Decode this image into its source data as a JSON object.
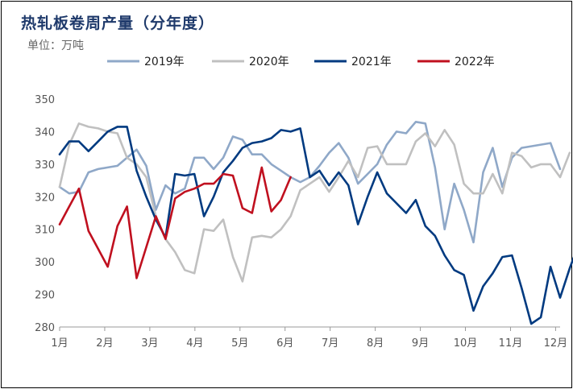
{
  "title": "热轧板卷周产量（分年度）",
  "unit_label": "单位：万吨",
  "chart_data": {
    "type": "line",
    "title": "热轧板卷周产量（分年度）",
    "ylabel": "单位：万吨",
    "xlabel": "",
    "ylim": [
      280,
      350
    ],
    "yticks": [
      280,
      290,
      300,
      310,
      320,
      330,
      340,
      350
    ],
    "x_ticks": [
      "1月",
      "2月",
      "3月",
      "4月",
      "5月",
      "6月",
      "7月",
      "8月",
      "9月",
      "10月",
      "11月",
      "12月"
    ],
    "x_range_weeks": [
      1,
      53
    ],
    "grid": false,
    "legend_position": "top",
    "series": [
      {
        "name": "2019年",
        "color": "#8fa8c8",
        "values": [
          323,
          321,
          321.5,
          327.5,
          328.5,
          329,
          329.5,
          332,
          334.5,
          329.5,
          316,
          323.5,
          321,
          322.5,
          332,
          332,
          328.5,
          332,
          338.5,
          337.5,
          333,
          333,
          330,
          328,
          326,
          324.5,
          326,
          329.5,
          333.5,
          336.5,
          332,
          324,
          327,
          330,
          336,
          340,
          339.5,
          343,
          342.5,
          329,
          310,
          324,
          316,
          306,
          327.5,
          335,
          323,
          332,
          335,
          335.5,
          336,
          336.5,
          328.5
        ]
      },
      {
        "name": "2020年",
        "color": "#c0c0c0",
        "values": [
          323,
          336,
          342.5,
          341.5,
          341,
          340,
          339.5,
          332,
          330,
          326,
          314,
          307,
          303,
          297.5,
          296.5,
          310,
          309.5,
          313,
          301.5,
          294,
          307.5,
          308,
          307.5,
          310,
          314,
          322,
          324,
          326,
          321.5,
          326,
          331,
          326,
          335,
          335.5,
          330,
          330,
          330,
          337,
          339.5,
          335.5,
          340.5,
          336,
          324,
          321,
          321,
          327,
          321,
          333.5,
          332.5,
          329,
          330,
          330,
          326,
          333.5
        ]
      },
      {
        "name": "2021年",
        "color": "#003a80",
        "values": [
          333,
          337,
          337,
          334,
          337,
          340,
          341.5,
          341.5,
          328,
          320,
          313,
          307.5,
          327,
          326.5,
          327,
          314,
          320,
          327.5,
          331,
          335,
          336.5,
          337,
          338,
          340.5,
          340,
          341,
          326,
          328,
          323.5,
          327.5,
          323.5,
          311.5,
          320,
          327.5,
          321,
          318,
          315,
          319,
          311,
          308,
          302,
          297.5,
          296,
          285,
          292.5,
          296.5,
          301.5,
          302,
          292,
          281,
          283,
          298.5,
          289,
          298,
          306
        ]
      },
      {
        "name": "2022年",
        "color": "#c0101f",
        "values": [
          311.5,
          317,
          322.5,
          309.5,
          304,
          298.5,
          311,
          317,
          295,
          304.5,
          314,
          307,
          319.5,
          321.5,
          322.5,
          324,
          324,
          327,
          326.5,
          316.5,
          315,
          329,
          315.5,
          319,
          326
        ]
      }
    ]
  }
}
